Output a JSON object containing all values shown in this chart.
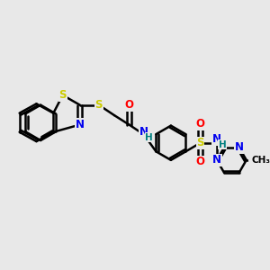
{
  "bg_color": "#e8e8e8",
  "bond_color": "#000000",
  "bond_width": 1.8,
  "colors": {
    "S": "#cccc00",
    "N": "#0000ee",
    "O": "#ff0000",
    "H": "#008080",
    "C": "#000000"
  },
  "font_size": 8.5
}
